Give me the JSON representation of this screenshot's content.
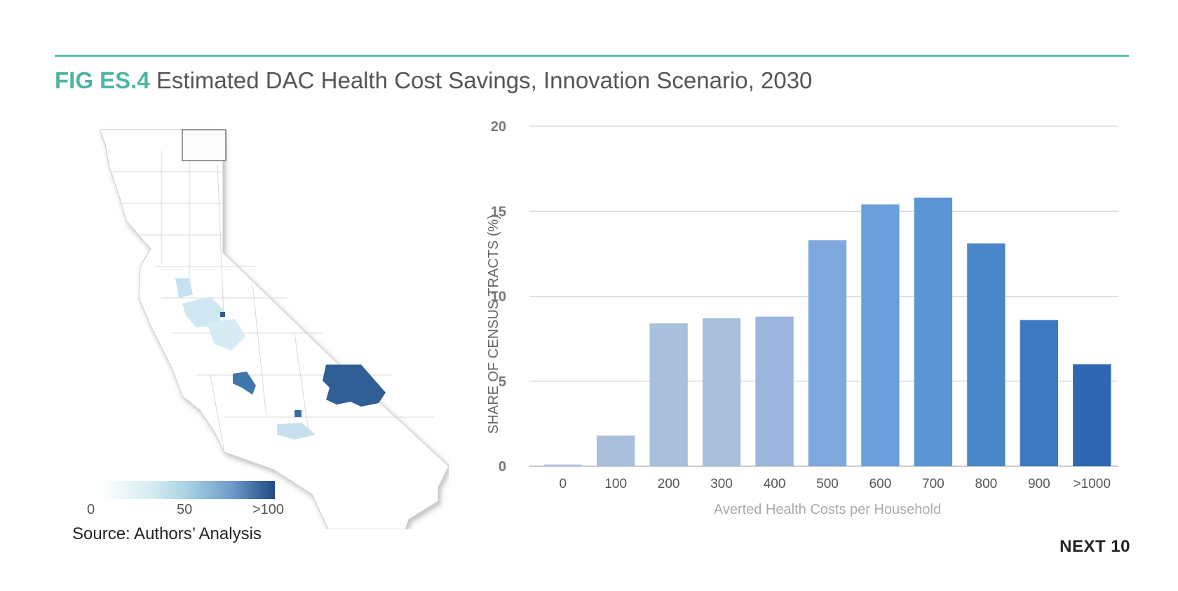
{
  "figure": {
    "label": "FIG ES.4",
    "title": "Estimated DAC Health Cost Savings, Innovation Scenario, 2030"
  },
  "map": {
    "legend_ticks": [
      "0",
      "50",
      ">100"
    ],
    "legend_colors": [
      "#ffffff",
      "#a8d2e3",
      "#1f4b84"
    ]
  },
  "source": "Source: Authors’ Analysis",
  "brand": "NEXT 10",
  "colors": {
    "accent": "#4db5a3",
    "rule": "#5cc2b0"
  },
  "chart_data": {
    "type": "bar",
    "categories": [
      "0",
      "100",
      "200",
      "300",
      "400",
      "500",
      "600",
      "700",
      "800",
      "900",
      ">1000"
    ],
    "values": [
      0.1,
      1.8,
      8.4,
      8.7,
      8.8,
      13.3,
      15.4,
      15.8,
      13.1,
      8.6,
      6.0
    ],
    "colors": [
      "#b4c8df",
      "#a9bfdc",
      "#a9bfdc",
      "#a9bfdc",
      "#9ab6de",
      "#7fa8dc",
      "#6a9fdb",
      "#5b95d4",
      "#4a87c8",
      "#3c79c0",
      "#2f67b3"
    ],
    "xlabel": "Averted Health Costs per Household",
    "ylabel": "SHARE OF CENSUS TRACTS (%)",
    "ylim": [
      0,
      20
    ],
    "yticks": [
      "0",
      "5",
      "10",
      "15",
      "20"
    ],
    "grid": true
  }
}
